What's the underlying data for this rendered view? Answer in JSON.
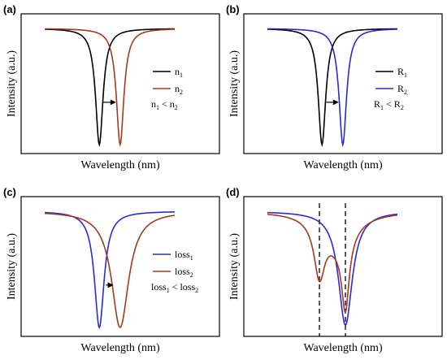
{
  "chart_data": [
    {
      "panel": "(a)",
      "type": "line",
      "xlabel": "Wavelength (nm)",
      "ylabel": "Intensity (a.u.)",
      "x_ticks": "none",
      "y_ticks": "none",
      "grid": false,
      "legend_position": "right",
      "series": [
        {
          "label": "n",
          "sub": "1",
          "color": "#000000",
          "center": 0.42,
          "width": 0.07,
          "depth": 0.98,
          "y_right": 0.98
        },
        {
          "label": "n",
          "sub": "2",
          "color": "#a33a1e",
          "center": 0.58,
          "width": 0.07,
          "depth": 0.98,
          "y_right": 0.98
        }
      ],
      "annotation": {
        "type": "arrow",
        "direction": "right",
        "from_x": 0.42,
        "to_x": 0.58,
        "y": 0.37
      },
      "inequality": {
        "left": "n",
        "left_sub": "1",
        "op": " < ",
        "right": "n",
        "right_sub": "2"
      }
    },
    {
      "panel": "(b)",
      "type": "line",
      "xlabel": "Wavelength (nm)",
      "ylabel": "Intensity (a.u.)",
      "x_ticks": "none",
      "y_ticks": "none",
      "grid": false,
      "legend_position": "right",
      "series": [
        {
          "label": "R",
          "sub": "1",
          "color": "#000000",
          "center": 0.42,
          "width": 0.07,
          "depth": 0.98,
          "y_right": 0.98
        },
        {
          "label": "R",
          "sub": "2",
          "color": "#2a2ad0",
          "center": 0.58,
          "width": 0.07,
          "depth": 0.98,
          "y_right": 0.98
        }
      ],
      "annotation": {
        "type": "arrow",
        "direction": "right",
        "from_x": 0.42,
        "to_x": 0.58,
        "y": 0.37
      },
      "inequality": {
        "left": "R",
        "left_sub": "1",
        "op": " < ",
        "right": "R",
        "right_sub": "2"
      }
    },
    {
      "panel": "(c)",
      "type": "line",
      "xlabel": "Wavelength (nm)",
      "ylabel": "Intensity (a.u.)",
      "x_ticks": "none",
      "y_ticks": "none",
      "grid": false,
      "legend_position": "right",
      "series": [
        {
          "label": "loss",
          "sub": "1",
          "color": "#2a2ad0",
          "center": 0.42,
          "width": 0.09,
          "depth": 0.98,
          "y_right": 0.98
        },
        {
          "label": "loss",
          "sub": "2",
          "color": "#a33a1e",
          "center": 0.58,
          "width": 0.16,
          "depth": 0.98,
          "y_right": 0.98
        }
      ],
      "annotation": {
        "type": "arrow",
        "direction": "right",
        "from_x": 0.44,
        "to_x": 0.56,
        "y": 0.37
      },
      "inequality": {
        "left": "loss",
        "left_sub": "1",
        "op": " < ",
        "right": "loss",
        "right_sub": "2"
      }
    },
    {
      "panel": "(d)",
      "type": "line",
      "xlabel": "Wavelength (nm)",
      "ylabel": "Intensity (a.u.)",
      "x_ticks": "none",
      "y_ticks": "none",
      "grid": false,
      "series": [
        {
          "color": "#2a2ad0",
          "dips": [
            {
              "center": 0.6,
              "width": 0.13,
              "depth": 0.96
            }
          ],
          "y_right": 0.98
        },
        {
          "color": "#a33a1e",
          "dips": [
            {
              "center": 0.4,
              "width": 0.1,
              "depth": 0.45
            },
            {
              "center": 0.6,
              "width": 0.07,
              "depth": 0.6
            },
            {
              "center": 0.55,
              "width": 0.3,
              "depth": 0.25
            }
          ],
          "y_right": 0.98
        }
      ],
      "dashed_lines_x": [
        0.4,
        0.6
      ]
    }
  ]
}
